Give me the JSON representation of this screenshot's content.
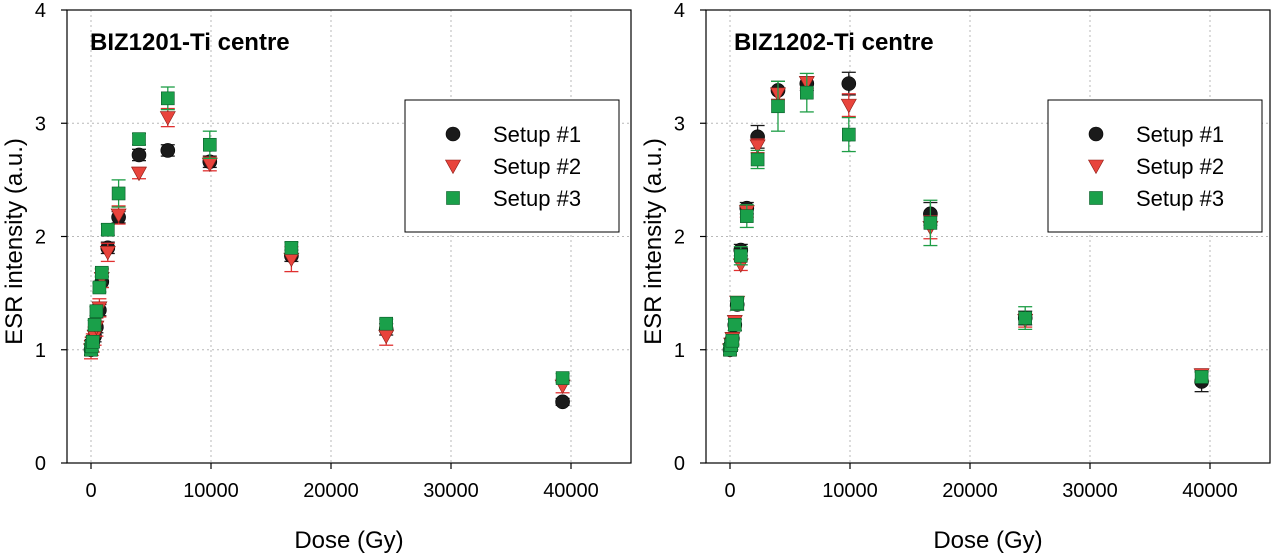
{
  "chart_data": [
    {
      "type": "scatter",
      "title": "BIZ1201-Ti centre",
      "xlabel": "Dose (Gy)",
      "ylabel": "ESR intensity (a.u.)",
      "xlim": [
        -2000,
        45000
      ],
      "ylim": [
        0,
        4
      ],
      "xticks": [
        "0",
        "10000",
        "20000",
        "30000",
        "40000"
      ],
      "yticks": [
        "0",
        "1",
        "2",
        "3",
        "4"
      ],
      "grid": true,
      "legend": "top-right",
      "series": [
        {
          "name": "Setup #1",
          "marker": "circle",
          "color": "#1a1a1a",
          "errcolor": "#1a1a1a",
          "points": [
            [
              0,
              1.0,
              0.05
            ],
            [
              60,
              1.04,
              0.05
            ],
            [
              150,
              1.07,
              0.05
            ],
            [
              300,
              1.12,
              0.05
            ],
            [
              450,
              1.2,
              0.05
            ],
            [
              700,
              1.35,
              0.05
            ],
            [
              900,
              1.6,
              0.05
            ],
            [
              1400,
              1.9,
              0.05
            ],
            [
              2300,
              2.17,
              0.05
            ],
            [
              4000,
              2.72,
              0.05
            ],
            [
              6400,
              2.76,
              0.05
            ],
            [
              9900,
              2.66,
              0.05
            ],
            [
              16700,
              1.83,
              0.05
            ],
            [
              24600,
              1.18,
              0.05
            ],
            [
              39300,
              0.54,
              0.03
            ]
          ]
        },
        {
          "name": "Setup #2",
          "marker": "triangle",
          "color": "#e8443c",
          "errcolor": "#e03030",
          "points": [
            [
              0,
              1.0,
              0.08
            ],
            [
              60,
              1.03,
              0.08
            ],
            [
              150,
              1.06,
              0.08
            ],
            [
              300,
              1.12,
              0.08
            ],
            [
              450,
              1.2,
              0.08
            ],
            [
              700,
              1.37,
              0.08
            ],
            [
              900,
              1.63,
              0.08
            ],
            [
              1400,
              1.86,
              0.08
            ],
            [
              2300,
              2.19,
              0.08
            ],
            [
              4000,
              2.56,
              0.05
            ],
            [
              6400,
              3.05,
              0.08
            ],
            [
              9900,
              2.64,
              0.06
            ],
            [
              16700,
              1.8,
              0.11
            ],
            [
              24600,
              1.12,
              0.08
            ],
            [
              39300,
              0.68,
              0.06
            ]
          ]
        },
        {
          "name": "Setup #3",
          "marker": "square",
          "color": "#1aa04a",
          "errcolor": "#1e9e46",
          "points": [
            [
              0,
              1.0,
              0.04
            ],
            [
              60,
              1.03,
              0.04
            ],
            [
              150,
              1.07,
              0.04
            ],
            [
              300,
              1.22,
              0.04
            ],
            [
              450,
              1.34,
              0.04
            ],
            [
              700,
              1.55,
              0.04
            ],
            [
              900,
              1.68,
              0.04
            ],
            [
              1400,
              2.06,
              0.05
            ],
            [
              2300,
              2.38,
              0.12
            ],
            [
              4000,
              2.86,
              0.05
            ],
            [
              6400,
              3.22,
              0.1
            ],
            [
              9900,
              2.81,
              0.12
            ],
            [
              16700,
              1.9,
              0.05
            ],
            [
              24600,
              1.23,
              0.04
            ],
            [
              39300,
              0.75,
              0.04
            ]
          ]
        }
      ]
    },
    {
      "type": "scatter",
      "title": "BIZ1202-Ti centre",
      "xlabel": "Dose (Gy)",
      "ylabel": "ESR intensity (a.u.)",
      "xlim": [
        -2000,
        45000
      ],
      "ylim": [
        0,
        4
      ],
      "xticks": [
        "0",
        "10000",
        "20000",
        "30000",
        "40000"
      ],
      "yticks": [
        "0",
        "1",
        "2",
        "3",
        "4"
      ],
      "grid": true,
      "legend": "top-right",
      "series": [
        {
          "name": "Setup #1",
          "marker": "circle",
          "color": "#1a1a1a",
          "errcolor": "#1a1a1a",
          "points": [
            [
              0,
              1.0,
              0.05
            ],
            [
              100,
              1.05,
              0.05
            ],
            [
              200,
              1.1,
              0.05
            ],
            [
              400,
              1.22,
              0.05
            ],
            [
              600,
              1.4,
              0.05
            ],
            [
              900,
              1.88,
              0.05
            ],
            [
              1400,
              2.25,
              0.05
            ],
            [
              2300,
              2.88,
              0.1
            ],
            [
              4000,
              3.29,
              0.08
            ],
            [
              6400,
              3.35,
              0.06
            ],
            [
              9900,
              3.35,
              0.1
            ],
            [
              16700,
              2.2,
              0.1
            ],
            [
              24600,
              1.28,
              0.06
            ],
            [
              39300,
              0.72,
              0.09
            ]
          ]
        },
        {
          "name": "Setup #2",
          "marker": "triangle",
          "color": "#e8443c",
          "errcolor": "#e03030",
          "points": [
            [
              0,
              1.0,
              0.05
            ],
            [
              100,
              1.05,
              0.05
            ],
            [
              200,
              1.1,
              0.05
            ],
            [
              400,
              1.25,
              0.05
            ],
            [
              600,
              1.42,
              0.05
            ],
            [
              900,
              1.75,
              0.05
            ],
            [
              1400,
              2.22,
              0.05
            ],
            [
              2300,
              2.8,
              0.06
            ],
            [
              4000,
              3.26,
              0.05
            ],
            [
              6400,
              3.36,
              0.05
            ],
            [
              9900,
              3.16,
              0.1
            ],
            [
              16700,
              2.08,
              0.1
            ],
            [
              24600,
              1.26,
              0.06
            ],
            [
              39300,
              0.78,
              0.05
            ]
          ]
        },
        {
          "name": "Setup #3",
          "marker": "square",
          "color": "#1aa04a",
          "errcolor": "#1e9e46",
          "points": [
            [
              0,
              1.0,
              0.04
            ],
            [
              100,
              1.04,
              0.04
            ],
            [
              200,
              1.08,
              0.04
            ],
            [
              400,
              1.22,
              0.05
            ],
            [
              600,
              1.41,
              0.06
            ],
            [
              900,
              1.83,
              0.08
            ],
            [
              1400,
              2.18,
              0.1
            ],
            [
              2300,
              2.68,
              0.08
            ],
            [
              4000,
              3.15,
              0.22
            ],
            [
              6400,
              3.27,
              0.17
            ],
            [
              9900,
              2.9,
              0.15
            ],
            [
              16700,
              2.12,
              0.2
            ],
            [
              24600,
              1.28,
              0.1
            ],
            [
              39300,
              0.76,
              0.04
            ]
          ]
        }
      ]
    }
  ]
}
